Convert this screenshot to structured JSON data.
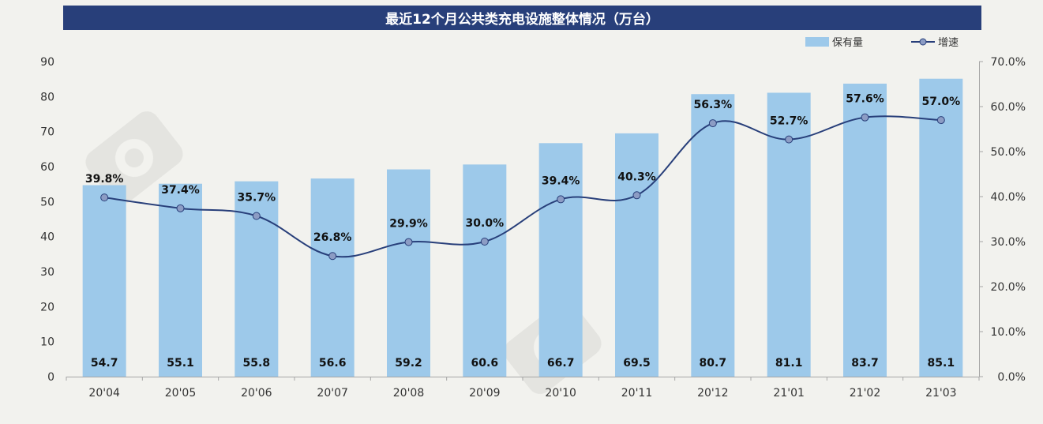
{
  "chart_data": {
    "type": "bar",
    "title": "最近12个月公共类充电设施整体情况（万台）",
    "categories": [
      "20'04",
      "20'05",
      "20'06",
      "20'07",
      "20'08",
      "20'09",
      "20'10",
      "20'11",
      "20'12",
      "21'01",
      "21'02",
      "21'03"
    ],
    "series": [
      {
        "name": "保有量",
        "type": "bar",
        "axis": "left",
        "color": "#9dc9ea",
        "values": [
          54.7,
          55.1,
          55.8,
          56.6,
          59.2,
          60.6,
          66.7,
          69.5,
          80.7,
          81.1,
          83.7,
          85.1
        ],
        "labels": [
          "54.7",
          "55.1",
          "55.8",
          "56.6",
          "59.2",
          "60.6",
          "66.7",
          "69.5",
          "80.7",
          "81.1",
          "83.7",
          "85.1"
        ]
      },
      {
        "name": "增速",
        "type": "line",
        "axis": "right",
        "color": "#283f7a",
        "marker_color": "#8c9cc4",
        "values": [
          39.8,
          37.4,
          35.7,
          26.8,
          29.9,
          30.0,
          39.4,
          40.3,
          56.3,
          52.7,
          57.6,
          57.0
        ],
        "labels": [
          "39.8%",
          "37.4%",
          "35.7%",
          "26.8%",
          "29.9%",
          "30.0%",
          "39.4%",
          "40.3%",
          "56.3%",
          "52.7%",
          "57.6%",
          "57.0%"
        ]
      }
    ],
    "y_left": {
      "min": 0,
      "max": 90,
      "ticks": [
        "0",
        "10",
        "20",
        "30",
        "40",
        "50",
        "60",
        "70",
        "80",
        "90"
      ]
    },
    "y_right": {
      "min": 0,
      "max": 70,
      "ticks": [
        "0.0%",
        "10.0%",
        "20.0%",
        "30.0%",
        "40.0%",
        "50.0%",
        "60.0%",
        "70.0%"
      ]
    },
    "legend_position": "top-right",
    "grid": false
  }
}
